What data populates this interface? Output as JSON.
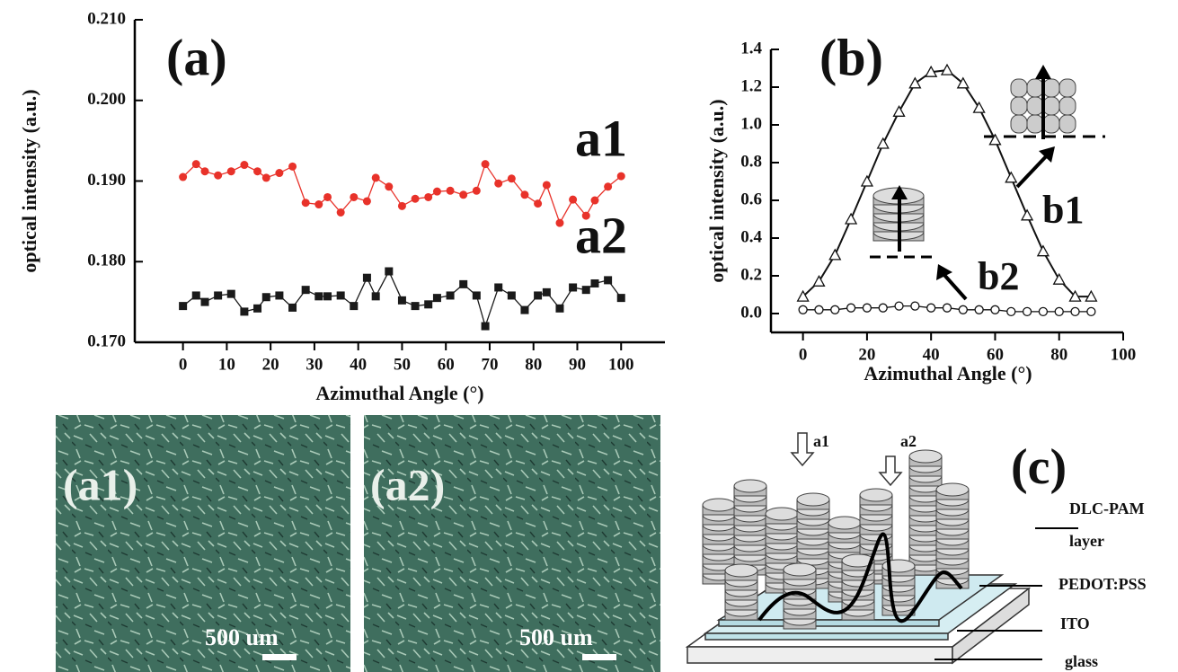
{
  "chart_data": [
    {
      "type": "scatter-line",
      "y_label": "optical intensity (a.u.)",
      "x_label": "Azimuthal Angle (°)",
      "xlim": [
        -11,
        110
      ],
      "ylim": [
        0.17,
        0.21
      ],
      "xticks": [
        0,
        10,
        20,
        30,
        40,
        50,
        60,
        70,
        80,
        90,
        100
      ],
      "yticks": [
        {
          "value": 0.17,
          "label": "0.170"
        },
        {
          "value": 0.18,
          "label": "0.180"
        },
        {
          "value": 0.19,
          "label": "0.190"
        },
        {
          "value": 0.2,
          "label": "0.200"
        },
        {
          "value": 0.21,
          "label": "0.210"
        }
      ],
      "annotations": [
        {
          "text": "(a)"
        },
        {
          "text": "a1"
        },
        {
          "text": "a2"
        }
      ],
      "series": [
        {
          "name": "a1",
          "color": "#e8322a",
          "marker": "circle",
          "x": [
            0,
            3,
            5,
            8,
            11,
            14,
            17,
            19,
            22,
            25,
            28,
            31,
            33,
            36,
            39,
            42,
            44,
            47,
            50,
            53,
            56,
            58,
            61,
            64,
            67,
            69,
            72,
            75,
            78,
            81,
            83,
            86,
            89,
            92,
            94,
            97,
            100
          ],
          "values": [
            0.1905,
            0.1921,
            0.1912,
            0.1907,
            0.1912,
            0.192,
            0.1912,
            0.1904,
            0.191,
            0.1918,
            0.1873,
            0.1871,
            0.188,
            0.1861,
            0.188,
            0.1875,
            0.1904,
            0.1893,
            0.1869,
            0.1878,
            0.188,
            0.1887,
            0.1888,
            0.1883,
            0.1888,
            0.1921,
            0.1897,
            0.1903,
            0.1883,
            0.1872,
            0.1895,
            0.1848,
            0.1877,
            0.1857,
            0.1876,
            0.1893,
            0.1906
          ]
        },
        {
          "name": "a2",
          "color": "#1a1a1a",
          "marker": "square",
          "x": [
            0,
            3,
            5,
            8,
            11,
            14,
            17,
            19,
            22,
            25,
            28,
            31,
            33,
            36,
            39,
            42,
            44,
            47,
            50,
            53,
            56,
            58,
            61,
            64,
            67,
            69,
            72,
            75,
            78,
            81,
            83,
            86,
            89,
            92,
            94,
            97,
            100
          ],
          "values": [
            0.1745,
            0.1758,
            0.175,
            0.1758,
            0.176,
            0.1738,
            0.1742,
            0.1756,
            0.1758,
            0.1743,
            0.1765,
            0.1757,
            0.1757,
            0.1758,
            0.1745,
            0.178,
            0.1757,
            0.1788,
            0.1752,
            0.1745,
            0.1747,
            0.1755,
            0.1758,
            0.1772,
            0.1758,
            0.172,
            0.1768,
            0.1758,
            0.174,
            0.1758,
            0.1762,
            0.1742,
            0.1768,
            0.1765,
            0.1773,
            0.1777,
            0.1755
          ]
        }
      ]
    },
    {
      "type": "scatter-line",
      "y_label": "optical intensity (a.u.)",
      "x_label": "Azimuthal Angle (°)",
      "xlim": [
        -10,
        100
      ],
      "ylim": [
        -0.1,
        1.4
      ],
      "xticks": [
        0,
        20,
        40,
        60,
        80,
        100
      ],
      "yticks": [
        {
          "value": 0,
          "label": "0.0"
        },
        {
          "value": 0.2,
          "label": "0.2"
        },
        {
          "value": 0.4,
          "label": "0.4"
        },
        {
          "value": 0.6,
          "label": "0.6"
        },
        {
          "value": 0.8,
          "label": "0.8"
        },
        {
          "value": 1.0,
          "label": "1.0"
        },
        {
          "value": 1.2,
          "label": "1.2"
        },
        {
          "value": 1.4,
          "label": "1.4"
        }
      ],
      "annotations": [
        {
          "text": "(b)"
        },
        {
          "text": "b1"
        },
        {
          "text": "b2"
        }
      ],
      "series": [
        {
          "name": "b1",
          "color": "#111111",
          "marker": "open-triangle",
          "x": [
            0,
            5,
            10,
            15,
            20,
            25,
            30,
            35,
            40,
            45,
            50,
            55,
            60,
            65,
            70,
            75,
            80,
            85,
            90
          ],
          "values": [
            0.09,
            0.17,
            0.31,
            0.5,
            0.7,
            0.9,
            1.07,
            1.22,
            1.28,
            1.29,
            1.22,
            1.09,
            0.92,
            0.72,
            0.52,
            0.33,
            0.18,
            0.09,
            0.09
          ]
        },
        {
          "name": "b2",
          "color": "#111111",
          "marker": "open-circle",
          "x": [
            0,
            5,
            10,
            15,
            20,
            25,
            30,
            35,
            40,
            45,
            50,
            55,
            60,
            65,
            70,
            75,
            80,
            85,
            90
          ],
          "values": [
            0.02,
            0.02,
            0.02,
            0.03,
            0.03,
            0.03,
            0.04,
            0.04,
            0.03,
            0.03,
            0.02,
            0.02,
            0.02,
            0.01,
            0.01,
            0.01,
            0.01,
            0.01,
            0.01
          ]
        }
      ]
    }
  ],
  "micrographs": [
    {
      "label": "(a1)",
      "scale": "500 um"
    },
    {
      "label": "(a2)",
      "scale": "500 um"
    }
  ],
  "diagram": {
    "panel": "(c)",
    "arrows": [
      "a1",
      "a2"
    ],
    "layers": [
      "DLC-PAM",
      "layer",
      "PEDOT:PSS",
      "ITO",
      "glass"
    ]
  }
}
